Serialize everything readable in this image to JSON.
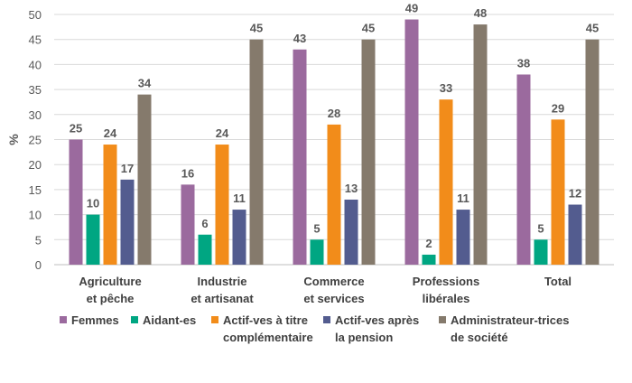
{
  "chart_data": {
    "type": "bar",
    "title": "",
    "xlabel": "",
    "ylabel": "%",
    "ylim": [
      0,
      50
    ],
    "yticks": [
      0,
      5,
      10,
      15,
      20,
      25,
      30,
      35,
      40,
      45,
      50
    ],
    "grid": true,
    "legend_position": "bottom",
    "categories": [
      [
        "Agriculture",
        "et pêche"
      ],
      [
        "Industrie",
        "et artisanat"
      ],
      [
        "Commerce",
        "et services"
      ],
      [
        "Professions",
        "libérales"
      ],
      [
        "Total"
      ]
    ],
    "series": [
      {
        "name": [
          "Femmes"
        ],
        "color": "#9B6A9E",
        "values": [
          25,
          16,
          43,
          49,
          38
        ]
      },
      {
        "name": [
          "Aidant-es"
        ],
        "color": "#00A682",
        "values": [
          10,
          6,
          5,
          2,
          5
        ]
      },
      {
        "name": [
          "Actif-ves à titre",
          "complémentaire"
        ],
        "color": "#F28C1A",
        "values": [
          24,
          24,
          28,
          33,
          29
        ]
      },
      {
        "name": [
          "Actif-ves après",
          "la pension"
        ],
        "color": "#535C8F",
        "values": [
          17,
          11,
          13,
          11,
          12
        ]
      },
      {
        "name": [
          "Administrateur-trices",
          "de société"
        ],
        "color": "#857A6C",
        "values": [
          34,
          45,
          45,
          48,
          45
        ]
      }
    ]
  }
}
